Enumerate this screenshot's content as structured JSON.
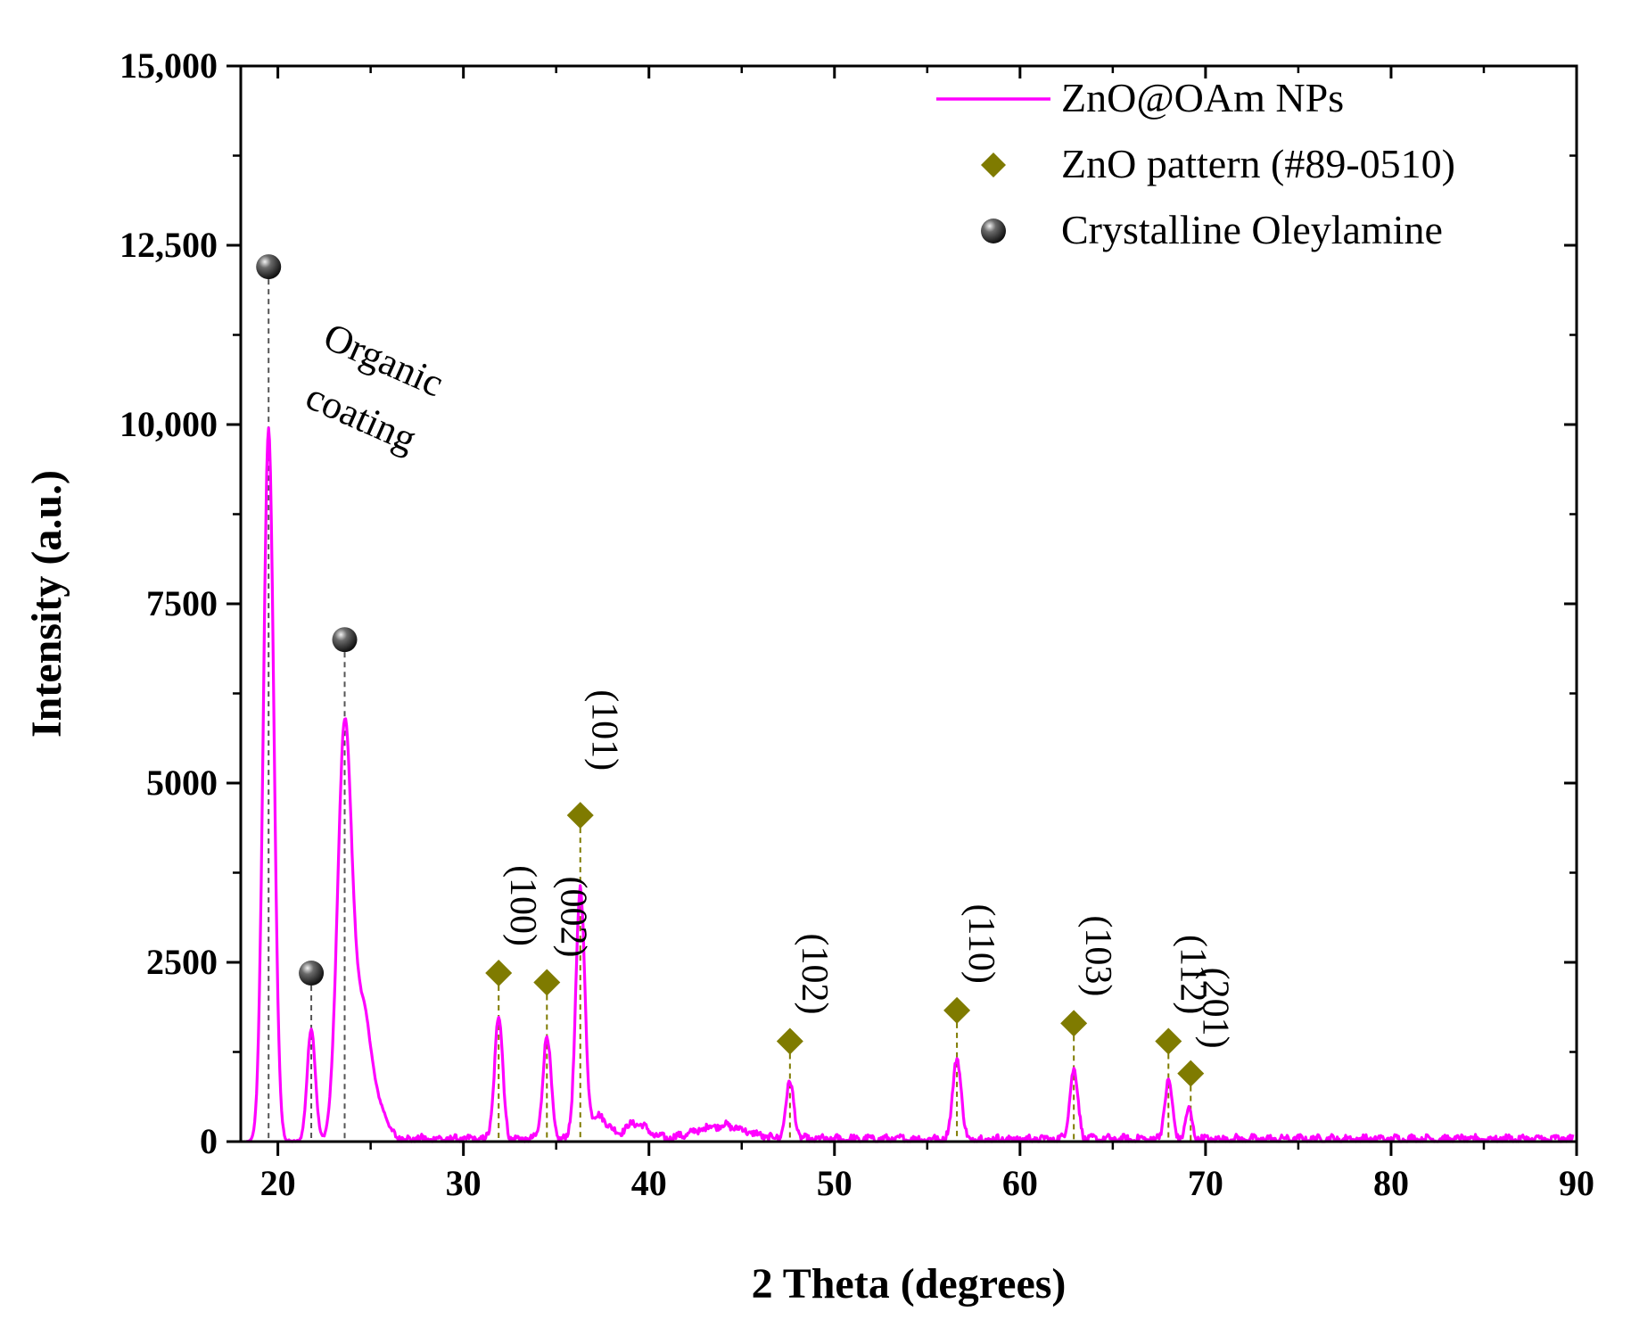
{
  "chart_data": {
    "type": "line",
    "title": "",
    "xlabel": "2 Theta (degrees)",
    "ylabel": "Intensity (a.u.)",
    "xlim": [
      18,
      90
    ],
    "ylim": [
      0,
      15000
    ],
    "x_ticks": [
      20,
      30,
      40,
      50,
      60,
      70,
      80,
      90
    ],
    "x_tick_labels": [
      "20",
      "30",
      "40",
      "50",
      "60",
      "70",
      "80",
      "90"
    ],
    "y_ticks": [
      0,
      2500,
      5000,
      7500,
      10000,
      12500,
      15000
    ],
    "y_tick_labels": [
      "0",
      "2500",
      "5000",
      "7500",
      "10,000",
      "12,500",
      "15,000"
    ],
    "grid": false,
    "legend_position": "top-right",
    "colors": {
      "line": "#ff00ff",
      "diamond": "#7f7b00",
      "sphere": "#3a3a3a"
    },
    "series": [
      {
        "name": "ZnO@OAm NPs",
        "peaks": [
          {
            "center": 19.5,
            "height": 9950,
            "width": 0.28
          },
          {
            "center": 21.8,
            "height": 1580,
            "width": 0.22
          },
          {
            "center": 23.6,
            "height": 5750,
            "width": 0.38
          },
          {
            "center": 24.6,
            "height": 1800,
            "width": 0.45
          },
          {
            "center": 25.6,
            "height": 350,
            "width": 0.4
          },
          {
            "center": 31.9,
            "height": 1720,
            "width": 0.22
          },
          {
            "center": 34.5,
            "height": 1430,
            "width": 0.22
          },
          {
            "center": 36.3,
            "height": 3450,
            "width": 0.24
          },
          {
            "center": 37.3,
            "height": 320,
            "width": 0.5
          },
          {
            "center": 39.3,
            "height": 220,
            "width": 0.6
          },
          {
            "center": 43.9,
            "height": 190,
            "width": 1.3
          },
          {
            "center": 47.6,
            "height": 780,
            "width": 0.22
          },
          {
            "center": 56.6,
            "height": 1150,
            "width": 0.22
          },
          {
            "center": 62.9,
            "height": 960,
            "width": 0.22
          },
          {
            "center": 68.0,
            "height": 820,
            "width": 0.2
          },
          {
            "center": 69.1,
            "height": 400,
            "width": 0.18
          }
        ],
        "x_range": [
          18.3,
          89.8
        ],
        "base": 60
      }
    ],
    "legend": [
      {
        "label": "ZnO@OAm NPs",
        "marker": "line"
      },
      {
        "label": "ZnO pattern (#89-0510)",
        "marker": "diamond"
      },
      {
        "label": "Crystalline Oleylamine",
        "marker": "sphere"
      }
    ],
    "zno_markers": [
      {
        "x": 31.9,
        "y": 2350,
        "label": "(100)"
      },
      {
        "x": 34.5,
        "y": 2220,
        "label": "(002)"
      },
      {
        "x": 36.3,
        "y": 4550,
        "label": "(101)"
      },
      {
        "x": 47.6,
        "y": 1400,
        "label": "(102)"
      },
      {
        "x": 56.6,
        "y": 1830,
        "label": "(110)"
      },
      {
        "x": 62.9,
        "y": 1650,
        "label": "(103)"
      },
      {
        "x": 68.0,
        "y": 1400,
        "label": "(112)"
      },
      {
        "x": 69.2,
        "y": 950,
        "label": "(201)"
      }
    ],
    "oleylamine_markers": [
      {
        "x": 19.5,
        "y": 12200
      },
      {
        "x": 21.8,
        "y": 2350
      },
      {
        "x": 23.6,
        "y": 7000
      }
    ],
    "annotation": {
      "lines": [
        "Organic",
        "coating"
      ]
    }
  }
}
